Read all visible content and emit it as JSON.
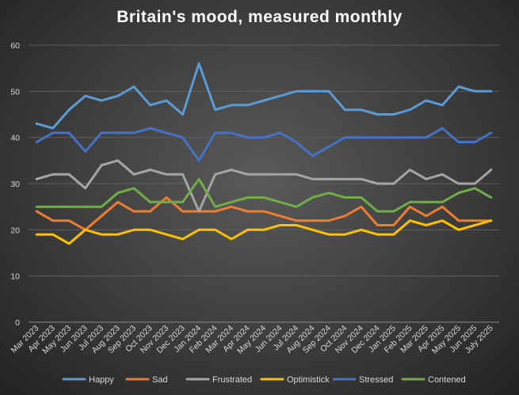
{
  "chart_data": {
    "type": "line",
    "title": "Britain's mood, measured monthly",
    "xlabel": "",
    "ylabel": "",
    "ylim": [
      0,
      60
    ],
    "yticks": [
      0,
      10,
      20,
      30,
      40,
      50,
      60
    ],
    "grid": true,
    "legend": "bottom",
    "categories": [
      "Mar 2023",
      "Apr 2023",
      "May 2023",
      "Jun 2023",
      "Jul 2023",
      "Aug 2023",
      "Sep 2023",
      "Oct 2023",
      "Nov 2023",
      "Dec 2023",
      "Jan 2024",
      "Feb 2024",
      "Mar 2024",
      "Apr 2024",
      "May 2024",
      "Jun 2024",
      "Jul 2024",
      "Aug 2024",
      "Sep 2024",
      "Oct 2024",
      "Nov 2024",
      "Dec 2024",
      "Jan 2025",
      "Feb 2025",
      "Mar 2025",
      "Apr 2025",
      "May 2025",
      "Jun 2025",
      "July 2025"
    ],
    "series": [
      {
        "name": "Happy",
        "color": "#5b9bd5",
        "values": [
          43,
          42,
          46,
          49,
          48,
          49,
          51,
          47,
          48,
          45,
          56,
          46,
          47,
          47,
          48,
          49,
          50,
          50,
          50,
          46,
          46,
          45,
          45,
          46,
          48,
          47,
          51,
          50,
          50
        ]
      },
      {
        "name": "Sad",
        "color": "#ed7d31",
        "values": [
          24,
          22,
          22,
          20,
          23,
          26,
          24,
          24,
          27,
          24,
          24,
          24,
          25,
          24,
          24,
          23,
          22,
          22,
          22,
          23,
          25,
          21,
          21,
          25,
          23,
          25,
          22,
          22,
          22
        ]
      },
      {
        "name": "Frustrated",
        "color": "#a5a5a5",
        "values": [
          31,
          32,
          32,
          29,
          34,
          35,
          32,
          33,
          32,
          32,
          24,
          32,
          33,
          32,
          32,
          32,
          32,
          31,
          31,
          31,
          31,
          30,
          30,
          33,
          31,
          32,
          30,
          30,
          33
        ]
      },
      {
        "name": "Optimistick",
        "color": "#ffc000",
        "values": [
          19,
          19,
          17,
          20,
          19,
          19,
          20,
          20,
          19,
          18,
          20,
          20,
          18,
          20,
          20,
          21,
          21,
          20,
          19,
          19,
          20,
          19,
          19,
          22,
          21,
          22,
          20,
          21,
          22
        ]
      },
      {
        "name": "Stressed",
        "color": "#4472c4",
        "values": [
          39,
          41,
          41,
          37,
          41,
          41,
          41,
          42,
          41,
          40,
          35,
          41,
          41,
          40,
          40,
          41,
          39,
          36,
          38,
          40,
          40,
          40,
          40,
          40,
          40,
          42,
          39,
          39,
          41
        ]
      },
      {
        "name": "Contened",
        "color": "#70ad47",
        "values": [
          25,
          25,
          25,
          25,
          25,
          28,
          29,
          26,
          26,
          26,
          31,
          25,
          26,
          27,
          27,
          26,
          25,
          27,
          28,
          27,
          27,
          24,
          24,
          26,
          26,
          26,
          28,
          29,
          27
        ]
      }
    ]
  }
}
